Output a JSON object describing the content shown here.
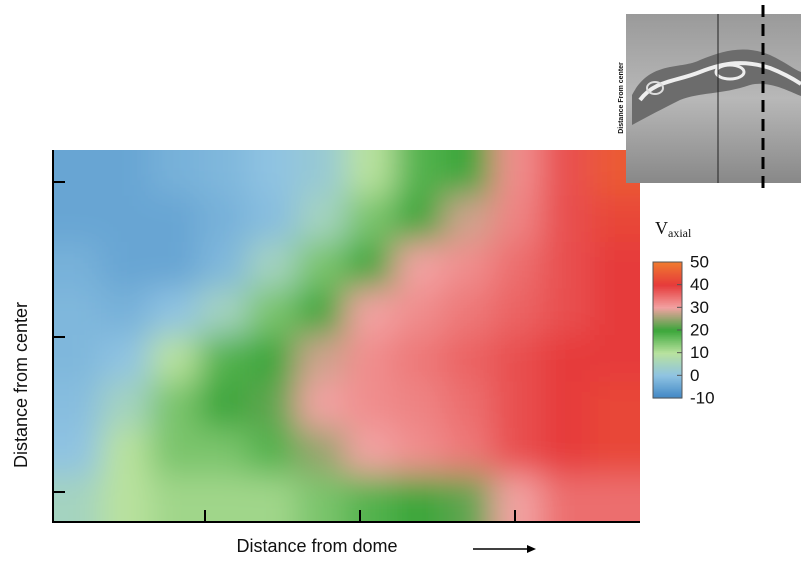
{
  "chart_data": {
    "type": "contour",
    "x_label": "Distance from dome",
    "y_label": "Distance from center",
    "colorbar_title": {
      "base": "V",
      "subscript": "axial"
    },
    "colorbar": {
      "ticks": [
        50,
        40,
        30,
        20,
        10,
        0,
        -10
      ],
      "colors": [
        "#f07a30",
        "#e63a3a",
        "#f2a2a2",
        "#3aa63a",
        "#b9e29e",
        "#8fc3e2",
        "#3f86c4"
      ]
    },
    "z": [
      [
        -5,
        -5,
        -3,
        -2,
        0,
        2,
        10,
        18,
        20,
        32,
        38,
        45
      ],
      [
        -5,
        -5,
        -5,
        -3,
        -1,
        5,
        15,
        20,
        28,
        33,
        38,
        42
      ],
      [
        -3,
        -5,
        -5,
        -2,
        5,
        15,
        20,
        30,
        32,
        35,
        38,
        40
      ],
      [
        -2,
        -3,
        0,
        5,
        15,
        20,
        30,
        32,
        34,
        36,
        38,
        40
      ],
      [
        -2,
        0,
        10,
        18,
        20,
        28,
        32,
        34,
        36,
        38,
        40,
        40
      ],
      [
        -1,
        5,
        15,
        20,
        22,
        30,
        32,
        33,
        35,
        38,
        40,
        42
      ],
      [
        0,
        10,
        15,
        15,
        18,
        25,
        30,
        32,
        34,
        38,
        40,
        42
      ],
      [
        5,
        10,
        12,
        12,
        12,
        15,
        18,
        20,
        22,
        30,
        35,
        35
      ]
    ]
  },
  "inset": {
    "label": "Distance From center"
  }
}
